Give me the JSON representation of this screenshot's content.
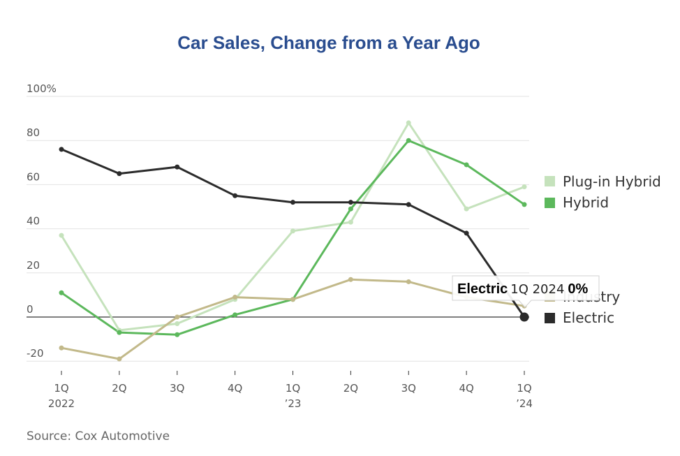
{
  "chart_data": {
    "type": "line",
    "title": "Car Sales, Change from a Year Ago",
    "source": "Source: Cox Automotive",
    "x_ticks": [
      [
        "1Q",
        "2022"
      ],
      [
        "2Q",
        ""
      ],
      [
        "3Q",
        ""
      ],
      [
        "4Q",
        ""
      ],
      [
        "1Q",
        "’23"
      ],
      [
        "2Q",
        ""
      ],
      [
        "3Q",
        ""
      ],
      [
        "4Q",
        ""
      ],
      [
        "1Q",
        "’24"
      ]
    ],
    "y_ticks": [
      "100%",
      "80",
      "60",
      "40",
      "20",
      "0",
      "-20"
    ],
    "y_tick_values": [
      100,
      80,
      60,
      40,
      20,
      0,
      -20
    ],
    "ylim": [
      -20,
      100
    ],
    "grid": true,
    "legend_position": "right",
    "series": [
      {
        "name": "Plug-in Hybrid",
        "color": "#c5e2bc",
        "values": [
          37,
          -6,
          -3,
          8,
          39,
          43,
          88,
          49,
          59
        ]
      },
      {
        "name": "Hybrid",
        "color": "#5cb85c",
        "values": [
          11,
          -7,
          -8,
          1,
          8,
          49,
          80,
          69,
          51
        ]
      },
      {
        "name": "Industry",
        "color": "#c2b98a",
        "values": [
          -14,
          -19,
          0,
          9,
          8,
          17,
          16,
          9,
          5
        ]
      },
      {
        "name": "Electric",
        "color": "#2b2b2b",
        "values": [
          76,
          65,
          68,
          55,
          52,
          52,
          51,
          38,
          0
        ]
      }
    ],
    "tooltip": {
      "series": "Electric",
      "period": "1Q 2024",
      "value": "0%"
    }
  }
}
